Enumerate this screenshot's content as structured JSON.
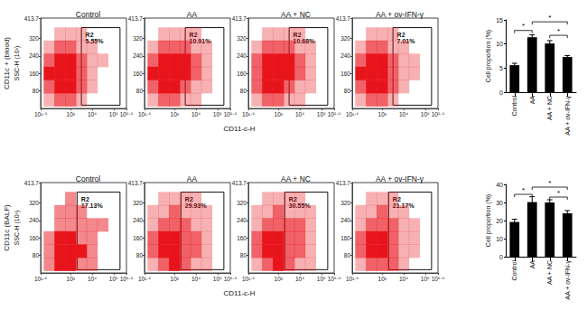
{
  "chart_data": [
    {
      "type": "scatter",
      "title": "Control",
      "row_label": "CD11c + (blood)",
      "ylabel": "SSC-H (10³)",
      "xlabel": "CD11-c-H",
      "log": "x",
      "color": "#e8141c",
      "xlim": [
        39.81,
        398107
      ],
      "xticks": [
        {
          "value": 39.81,
          "label": "10¹·⁶"
        },
        {
          "value": 1000,
          "label": "10³"
        },
        {
          "value": 10000,
          "label": "10⁴"
        },
        {
          "value": 100000,
          "label": "10⁵"
        },
        {
          "value": 398107,
          "label": "10⁵·⁶"
        }
      ],
      "ylim": [
        0,
        413.7
      ],
      "yticks": [
        80,
        160,
        240,
        320,
        413.7
      ],
      "gate": {
        "name": "R2",
        "xmin": 3162,
        "xmax": 199526,
        "ymin": 15,
        "ymax": 370,
        "percent": 5.55,
        "percent_label": "5.55%"
      },
      "density": {
        "x": [
          100,
          316,
          1000,
          3162,
          10000,
          31623,
          100000
        ],
        "y": [
          40,
          100,
          160,
          220,
          280,
          340
        ],
        "cells": [
          [
            1,
            2,
            2,
            1,
            0,
            0,
            0
          ],
          [
            2,
            3,
            3,
            2,
            1,
            0,
            0
          ],
          [
            3,
            3,
            3,
            2,
            1,
            0,
            0
          ],
          [
            2,
            3,
            3,
            2,
            1,
            1,
            0
          ],
          [
            1,
            2,
            2,
            1,
            1,
            0,
            0
          ],
          [
            0,
            1,
            1,
            1,
            0,
            0,
            0
          ]
        ]
      }
    },
    {
      "type": "scatter",
      "title": "AA",
      "log": "x",
      "color": "#e8141c",
      "xlim": [
        39.81,
        398107
      ],
      "xticks": [
        {
          "value": 39.81,
          "label": "10¹·⁶"
        },
        {
          "value": 1000,
          "label": "10³"
        },
        {
          "value": 10000,
          "label": "10⁴"
        },
        {
          "value": 100000,
          "label": "10⁵"
        },
        {
          "value": 398107,
          "label": "10⁵·⁶"
        }
      ],
      "ylim": [
        0,
        413.7
      ],
      "yticks": [
        80,
        160,
        240,
        320,
        413.7
      ],
      "gate": {
        "name": "R2",
        "xmin": 3162,
        "xmax": 199526,
        "ymin": 15,
        "ymax": 370,
        "percent": 10.91,
        "percent_label": "10.91%"
      },
      "density": {
        "x": [
          100,
          316,
          1000,
          3162,
          10000,
          31623,
          100000
        ],
        "y": [
          40,
          100,
          160,
          220,
          280,
          340
        ],
        "cells": [
          [
            1,
            2,
            2,
            1,
            1,
            0,
            0
          ],
          [
            2,
            3,
            3,
            2,
            1,
            1,
            0
          ],
          [
            3,
            3,
            3,
            3,
            2,
            1,
            0
          ],
          [
            2,
            3,
            3,
            3,
            2,
            1,
            0
          ],
          [
            1,
            2,
            2,
            2,
            1,
            1,
            0
          ],
          [
            0,
            1,
            1,
            1,
            1,
            0,
            0
          ]
        ]
      }
    },
    {
      "type": "scatter",
      "title": "AA + NC",
      "log": "x",
      "color": "#e8141c",
      "xlim": [
        39.81,
        398107
      ],
      "xticks": [
        {
          "value": 39.81,
          "label": "10¹·⁶"
        },
        {
          "value": 1000,
          "label": "10³"
        },
        {
          "value": 10000,
          "label": "10⁴"
        },
        {
          "value": 100000,
          "label": "10⁵"
        },
        {
          "value": 398107,
          "label": "10⁵·⁶"
        }
      ],
      "ylim": [
        0,
        413.7
      ],
      "yticks": [
        80,
        160,
        240,
        320,
        413.7
      ],
      "gate": {
        "name": "R2",
        "xmin": 3162,
        "xmax": 199526,
        "ymin": 15,
        "ymax": 370,
        "percent": 10.68,
        "percent_label": "10.68%"
      },
      "density": {
        "x": [
          100,
          316,
          1000,
          3162,
          10000,
          31623,
          100000
        ],
        "y": [
          40,
          100,
          160,
          220,
          280,
          340
        ],
        "cells": [
          [
            1,
            2,
            2,
            1,
            1,
            0,
            0
          ],
          [
            2,
            3,
            3,
            2,
            1,
            1,
            0
          ],
          [
            2,
            3,
            3,
            3,
            2,
            1,
            0
          ],
          [
            2,
            3,
            3,
            3,
            2,
            1,
            0
          ],
          [
            1,
            2,
            2,
            2,
            1,
            1,
            0
          ],
          [
            0,
            1,
            1,
            1,
            1,
            0,
            0
          ]
        ]
      }
    },
    {
      "type": "scatter",
      "title": "AA + ov-IFN-γ",
      "log": "x",
      "color": "#e8141c",
      "xlim": [
        39.81,
        398107
      ],
      "xticks": [
        {
          "value": 39.81,
          "label": "10¹·⁶"
        },
        {
          "value": 1000,
          "label": "10³"
        },
        {
          "value": 10000,
          "label": "10⁴"
        },
        {
          "value": 100000,
          "label": "10⁵"
        },
        {
          "value": 398107,
          "label": "10⁵·⁶"
        }
      ],
      "ylim": [
        0,
        413.7
      ],
      "yticks": [
        80,
        160,
        240,
        320,
        413.7
      ],
      "gate": {
        "name": "R2",
        "xmin": 3162,
        "xmax": 199526,
        "ymin": 15,
        "ymax": 370,
        "percent": 7.01,
        "percent_label": "7.01%"
      },
      "density": {
        "x": [
          100,
          316,
          1000,
          3162,
          10000,
          31623,
          100000
        ],
        "y": [
          40,
          100,
          160,
          220,
          280,
          340
        ],
        "cells": [
          [
            1,
            2,
            2,
            1,
            0,
            0,
            0
          ],
          [
            2,
            3,
            3,
            2,
            1,
            0,
            0
          ],
          [
            3,
            3,
            3,
            2,
            1,
            1,
            0
          ],
          [
            2,
            3,
            3,
            2,
            1,
            1,
            0
          ],
          [
            1,
            2,
            2,
            1,
            1,
            0,
            0
          ],
          [
            0,
            1,
            1,
            1,
            0,
            0,
            0
          ]
        ]
      }
    },
    {
      "type": "scatter",
      "title": "Control",
      "row_label": "CD11c (BALF)",
      "ylabel": "SSC-H (10³)",
      "xlabel": "CD11-c-H",
      "log": "x",
      "color": "#e8141c",
      "xlim": [
        39.81,
        398107
      ],
      "xticks": [
        {
          "value": 39.81,
          "label": "10¹·⁶"
        },
        {
          "value": 1000,
          "label": "10³"
        },
        {
          "value": 10000,
          "label": "10⁴"
        },
        {
          "value": 100000,
          "label": "10⁵"
        },
        {
          "value": 398107,
          "label": "10⁵·⁶"
        }
      ],
      "ylim": [
        0,
        413.7
      ],
      "yticks": [
        80,
        160,
        240,
        320,
        413.7
      ],
      "gate": {
        "name": "R2",
        "xmin": 1995,
        "xmax": 199526,
        "ymin": 15,
        "ymax": 370,
        "percent": 17.13,
        "percent_label": "17.13%"
      },
      "density": {
        "x": [
          100,
          316,
          1000,
          3162,
          10000,
          31623,
          100000
        ],
        "y": [
          40,
          100,
          160,
          220,
          280,
          340
        ],
        "cells": [
          [
            1,
            2,
            2,
            1,
            1,
            0,
            0
          ],
          [
            1,
            2,
            2,
            2,
            1,
            0,
            0
          ],
          [
            1,
            2,
            2,
            1,
            1,
            0,
            0
          ],
          [
            0,
            1,
            1,
            1,
            1,
            1,
            0
          ],
          [
            0,
            1,
            1,
            1,
            0,
            0,
            0
          ],
          [
            0,
            0,
            1,
            0,
            0,
            0,
            0
          ]
        ]
      }
    },
    {
      "type": "scatter",
      "title": "AA",
      "log": "x",
      "color": "#e8141c",
      "xlim": [
        39.81,
        398107
      ],
      "xticks": [
        {
          "value": 39.81,
          "label": "10¹·⁶"
        },
        {
          "value": 1000,
          "label": "10³"
        },
        {
          "value": 10000,
          "label": "10⁴"
        },
        {
          "value": 100000,
          "label": "10⁵"
        },
        {
          "value": 398107,
          "label": "10⁵·⁶"
        }
      ],
      "ylim": [
        0,
        413.7
      ],
      "yticks": [
        80,
        160,
        240,
        320,
        413.7
      ],
      "gate": {
        "name": "R2",
        "xmin": 1995,
        "xmax": 199526,
        "ymin": 15,
        "ymax": 370,
        "percent": 29.93,
        "percent_label": "29.93%"
      },
      "density": {
        "x": [
          100,
          316,
          1000,
          3162,
          10000,
          31623,
          100000
        ],
        "y": [
          40,
          100,
          160,
          220,
          280,
          340
        ],
        "cells": [
          [
            1,
            2,
            3,
            2,
            1,
            1,
            0
          ],
          [
            2,
            3,
            3,
            2,
            2,
            1,
            0
          ],
          [
            2,
            3,
            3,
            2,
            2,
            1,
            0
          ],
          [
            1,
            2,
            2,
            2,
            1,
            1,
            0
          ],
          [
            1,
            1,
            2,
            1,
            1,
            1,
            0
          ],
          [
            0,
            1,
            1,
            1,
            1,
            0,
            0
          ]
        ]
      }
    },
    {
      "type": "scatter",
      "title": "AA + NC",
      "log": "x",
      "color": "#e8141c",
      "xlim": [
        39.81,
        398107
      ],
      "xticks": [
        {
          "value": 39.81,
          "label": "10¹·⁶"
        },
        {
          "value": 1000,
          "label": "10³"
        },
        {
          "value": 10000,
          "label": "10⁴"
        },
        {
          "value": 100000,
          "label": "10⁵"
        },
        {
          "value": 398107,
          "label": "10⁵·⁶"
        }
      ],
      "ylim": [
        0,
        413.7
      ],
      "yticks": [
        80,
        160,
        240,
        320,
        413.7
      ],
      "gate": {
        "name": "R2",
        "xmin": 1995,
        "xmax": 199526,
        "ymin": 15,
        "ymax": 370,
        "percent": 30.55,
        "percent_label": "30.55%"
      },
      "density": {
        "x": [
          100,
          316,
          1000,
          3162,
          10000,
          31623,
          100000
        ],
        "y": [
          40,
          100,
          160,
          220,
          280,
          340
        ],
        "cells": [
          [
            1,
            2,
            3,
            2,
            1,
            1,
            0
          ],
          [
            2,
            3,
            3,
            2,
            2,
            1,
            0
          ],
          [
            2,
            3,
            3,
            2,
            2,
            1,
            0
          ],
          [
            1,
            2,
            2,
            2,
            2,
            1,
            0
          ],
          [
            1,
            1,
            2,
            1,
            1,
            1,
            0
          ],
          [
            0,
            1,
            1,
            1,
            1,
            0,
            0
          ]
        ]
      }
    },
    {
      "type": "scatter",
      "title": "AA + ov-IFN-γ",
      "log": "x",
      "color": "#e8141c",
      "xlim": [
        39.81,
        398107
      ],
      "xticks": [
        {
          "value": 39.81,
          "label": "10¹·⁶"
        },
        {
          "value": 1000,
          "label": "10³"
        },
        {
          "value": 10000,
          "label": "10⁴"
        },
        {
          "value": 100000,
          "label": "10⁵"
        },
        {
          "value": 398107,
          "label": "10⁵·⁶"
        }
      ],
      "ylim": [
        0,
        413.7
      ],
      "yticks": [
        80,
        160,
        240,
        320,
        413.7
      ],
      "gate": {
        "name": "R2",
        "xmin": 1995,
        "xmax": 199526,
        "ymin": 15,
        "ymax": 370,
        "percent": 21.17,
        "percent_label": "21.17%"
      },
      "density": {
        "x": [
          100,
          316,
          1000,
          3162,
          10000,
          31623,
          100000
        ],
        "y": [
          40,
          100,
          160,
          220,
          280,
          340
        ],
        "cells": [
          [
            1,
            2,
            2,
            2,
            1,
            0,
            0
          ],
          [
            2,
            3,
            3,
            2,
            1,
            1,
            0
          ],
          [
            2,
            3,
            3,
            2,
            1,
            1,
            0
          ],
          [
            1,
            2,
            2,
            2,
            1,
            1,
            0
          ],
          [
            1,
            1,
            2,
            1,
            1,
            0,
            0
          ],
          [
            0,
            1,
            1,
            1,
            0,
            0,
            0
          ]
        ]
      }
    },
    {
      "type": "bar",
      "ylabel": "Cell proportion (%)",
      "color": "#000000",
      "categories": [
        "Control",
        "AA",
        "AA + NC",
        "AA + ov-IFN-γ"
      ],
      "values": [
        5.6,
        11.4,
        10.1,
        7.3
      ],
      "errors": [
        0.4,
        0.5,
        0.6,
        0.3
      ],
      "ylim": [
        0,
        15
      ],
      "yticks": [
        0,
        5,
        10,
        15
      ],
      "significance": [
        {
          "from": "Control",
          "to": "AA",
          "label": "*",
          "y": 12.8
        },
        {
          "from": "AA",
          "to": "AA + ov-IFN-γ",
          "label": "*",
          "y": 14.6
        },
        {
          "from": "AA + NC",
          "to": "AA + ov-IFN-γ",
          "label": "*",
          "y": 11.8
        }
      ]
    },
    {
      "type": "bar",
      "ylabel": "Cell proportion (%)",
      "color": "#000000",
      "categories": [
        "Control",
        "AA",
        "AA + NC",
        "AA + ov-IFN-γ"
      ],
      "values": [
        19.2,
        30.2,
        30.0,
        24.0
      ],
      "errors": [
        1.5,
        3.0,
        1.5,
        1.5
      ],
      "ylim": [
        0,
        40
      ],
      "yticks": [
        0,
        10,
        20,
        30,
        40
      ],
      "significance": [
        {
          "from": "Control",
          "to": "AA",
          "label": "*",
          "y": 34.5
        },
        {
          "from": "AA",
          "to": "AA + ov-IFN-γ",
          "label": "*",
          "y": 38.5
        },
        {
          "from": "AA + NC",
          "to": "AA + ov-IFN-γ",
          "label": "*",
          "y": 33.0
        }
      ]
    }
  ]
}
